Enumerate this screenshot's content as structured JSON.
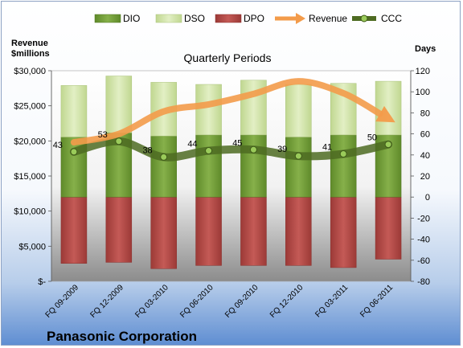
{
  "chart_data": {
    "type": "bar",
    "title": "Quarterly Periods",
    "left_axis_title": [
      "Revenue",
      "$millions"
    ],
    "right_axis_title": "Days",
    "company": "Panasonic Corporation",
    "categories": [
      "FQ 09-2009",
      "FQ 12-2009",
      "FQ 03-2010",
      "FQ 06-2010",
      "FQ 09-2010",
      "FQ 12-2010",
      "FQ 03-2011",
      "FQ 06-2011"
    ],
    "left_ticks": [
      "$-",
      "$5,000",
      "$10,000",
      "$15,000",
      "$20,000",
      "$25,000",
      "$30,000"
    ],
    "right_ticks": [
      "-80",
      "-60",
      "-40",
      "-20",
      "0",
      "20",
      "40",
      "60",
      "80",
      "100",
      "120"
    ],
    "ylim_left": [
      0,
      30000
    ],
    "ylim_right": [
      -80,
      120
    ],
    "legend": [
      "DIO",
      "DSO",
      "DPO",
      "Revenue",
      "CCC"
    ],
    "series": [
      {
        "name": "DIO",
        "axis": "right",
        "values": [
          57,
          61,
          58,
          59,
          59,
          57,
          59,
          59
        ]
      },
      {
        "name": "DSO",
        "axis": "right",
        "values": [
          49,
          54,
          51,
          48,
          52,
          50,
          49,
          51
        ]
      },
      {
        "name": "DPO",
        "axis": "right",
        "values": [
          -63,
          -62,
          -68,
          -65,
          -65,
          -65,
          -67,
          -59
        ]
      },
      {
        "name": "Revenue",
        "axis": "left",
        "values": [
          19800,
          21000,
          24200,
          25200,
          26700,
          28500,
          26800,
          23200
        ]
      },
      {
        "name": "CCC",
        "axis": "right",
        "values": [
          43,
          53,
          38,
          44,
          45,
          39,
          41,
          50
        ]
      }
    ],
    "ccc_labels": [
      "43",
      "53",
      "38",
      "44",
      "45",
      "39",
      "41",
      "50"
    ],
    "colors": {
      "DIO": "#77a03a",
      "DSO": "#cfe3a0",
      "DPO": "#b54b48",
      "Revenue": "#f39b4a",
      "CCC": "#4e6b22"
    },
    "grid": false,
    "legend_position": "top"
  }
}
